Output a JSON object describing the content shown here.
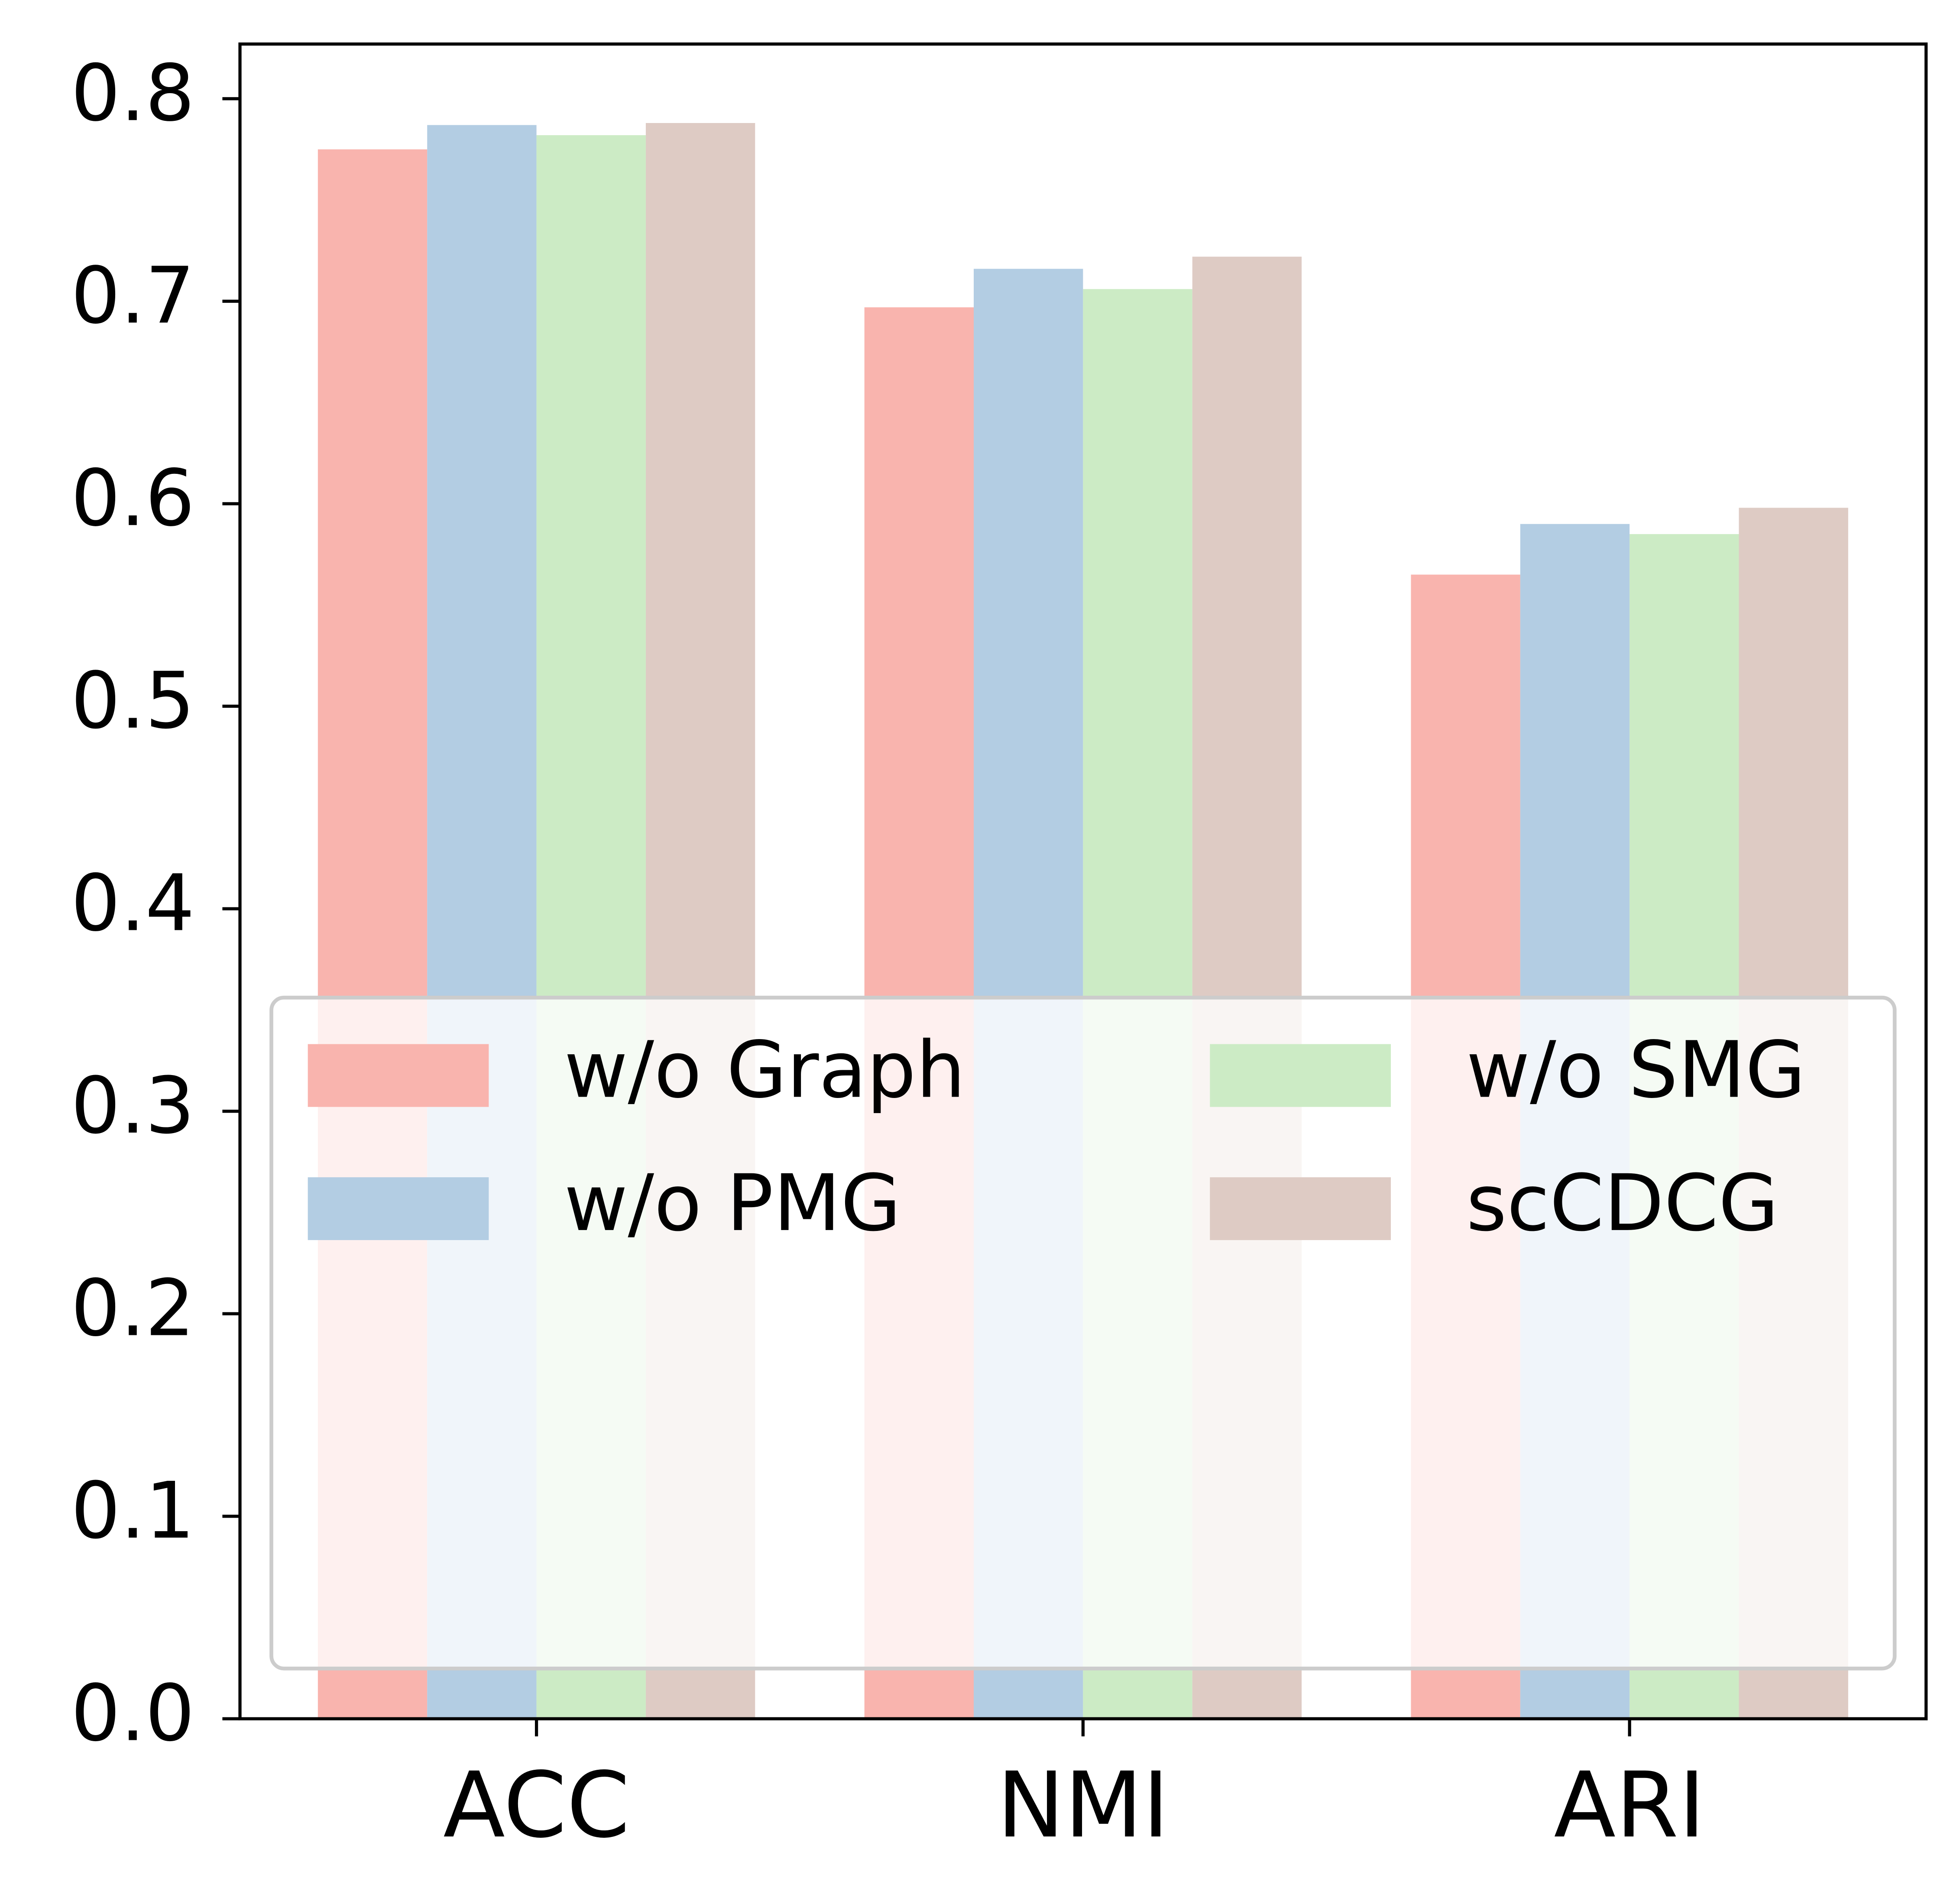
{
  "chart_data": {
    "type": "bar",
    "categories": [
      "ACC",
      "NMI",
      "ARI"
    ],
    "series": [
      {
        "name": "w/o Graph",
        "color": "#f9b4ae",
        "values": [
          0.775,
          0.697,
          0.565
        ]
      },
      {
        "name": "w/o PMG",
        "color": "#b3cde3",
        "values": [
          0.787,
          0.716,
          0.59
        ]
      },
      {
        "name": "w/o SMG",
        "color": "#ccebc5",
        "values": [
          0.782,
          0.706,
          0.585
        ]
      },
      {
        "name": "scCDCG",
        "color": "#decbc4",
        "values": [
          0.788,
          0.722,
          0.598
        ]
      }
    ],
    "ylim": [
      0,
      0.827
    ],
    "yticks": [
      {
        "value": 0,
        "label": "0.0"
      },
      0.1,
      0.2,
      0.3,
      0.4,
      0.5,
      0.6,
      0.7,
      0.8
    ],
    "grid": false,
    "legend": "lower right",
    "legend_columns": 2
  }
}
